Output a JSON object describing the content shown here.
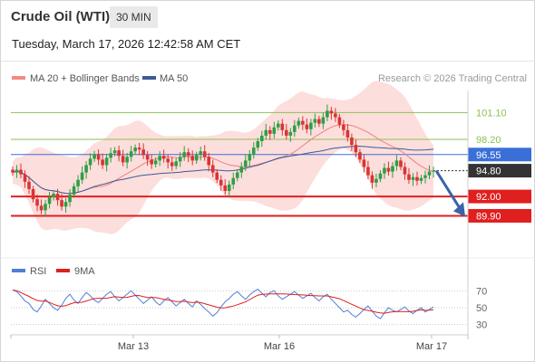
{
  "header": {
    "title": "Crude Oil (WTI)",
    "timeframe": "30 MIN",
    "datetime": "Tuesday, March 17, 2026 12:42:58 AM CET"
  },
  "legend": {
    "items": [
      {
        "label": "MA 20 + Bollinger Bands",
        "color": "#f28b82"
      },
      {
        "label": "MA 50",
        "color": "#3b5b95"
      }
    ],
    "copyright": "Research © 2026 Trading Central"
  },
  "colors": {
    "up": "#2f9e44",
    "down": "#d93434",
    "resistance": "#8cc152",
    "pivot_blue": "#3a6fd8",
    "support_red": "#e01f1f",
    "current": "#333333",
    "bollinger": "#fbd3d0",
    "ma20": "#f08080",
    "ma50": "#3b5b95",
    "rsi": "#4f7fd6",
    "rsi_ma": "#e01f1f",
    "arrow": "#3b63a8"
  },
  "chart_data": [
    {
      "type": "candlestick",
      "x_labels": [
        "Mar 13",
        "Mar 16",
        "Mar 17"
      ],
      "ylim": [
        87.0,
        103.5
      ],
      "levels": [
        {
          "value": 101.1,
          "label": "101.10",
          "kind": "resistance"
        },
        {
          "value": 98.2,
          "label": "98.20",
          "kind": "resistance"
        },
        {
          "value": 96.55,
          "label": "96.55",
          "kind": "pivot"
        },
        {
          "value": 94.8,
          "label": "94.80",
          "kind": "current"
        },
        {
          "value": 92.0,
          "label": "92.00",
          "kind": "support"
        },
        {
          "value": 89.9,
          "label": "89.90",
          "kind": "support"
        }
      ],
      "close": [
        94.6,
        94.9,
        94.4,
        93.6,
        92.8,
        91.7,
        91.0,
        90.5,
        91.2,
        91.9,
        92.3,
        91.6,
        90.9,
        91.4,
        92.2,
        93.1,
        93.8,
        94.6,
        95.4,
        96.1,
        96.6,
        96.0,
        95.4,
        96.2,
        96.7,
        97.0,
        96.4,
        95.7,
        96.3,
        96.9,
        97.3,
        97.1,
        96.5,
        96.0,
        95.5,
        95.9,
        96.4,
        96.1,
        95.7,
        95.3,
        95.8,
        96.3,
        96.8,
        96.4,
        95.9,
        96.5,
        96.9,
        96.3,
        95.4,
        94.6,
        93.8,
        93.2,
        92.6,
        93.3,
        94.0,
        94.6,
        95.2,
        95.9,
        96.6,
        97.3,
        98.0,
        98.6,
        99.2,
        98.8,
        99.5,
        99.9,
        99.2,
        98.6,
        99.0,
        99.7,
        100.2,
        99.8,
        99.3,
        100.0,
        100.4,
        99.9,
        100.6,
        101.3,
        101.0,
        100.6,
        99.8,
        99.2,
        98.4,
        97.6,
        96.8,
        96.0,
        95.2,
        94.3,
        93.5,
        93.9,
        94.5,
        95.1,
        94.7,
        95.3,
        95.9,
        95.2,
        94.4,
        93.8,
        94.1,
        93.7,
        94.0,
        94.3,
        94.7,
        94.8
      ],
      "rsi": {
        "levels": [
          70,
          50,
          30
        ],
        "ylim": [
          20,
          80
        ],
        "values": [
          71,
          69,
          64,
          58,
          55,
          48,
          45,
          52,
          60,
          55,
          50,
          47,
          53,
          61,
          66,
          59,
          55,
          62,
          68,
          64,
          59,
          56,
          61,
          66,
          69,
          63,
          58,
          62,
          66,
          70,
          65,
          60,
          55,
          59,
          63,
          57,
          53,
          58,
          62,
          57,
          52,
          56,
          60,
          55,
          51,
          58,
          54,
          49,
          45,
          40,
          44,
          51,
          57,
          61,
          66,
          69,
          64,
          60,
          65,
          69,
          72,
          67,
          63,
          68,
          70,
          64,
          60,
          63,
          66,
          69,
          65,
          61,
          64,
          67,
          62,
          58,
          63,
          66,
          60,
          55,
          50,
          45,
          47,
          42,
          39,
          43,
          48,
          52,
          46,
          40,
          37,
          44,
          50,
          47,
          45,
          48,
          51,
          46,
          43,
          47,
          50,
          45,
          48,
          51
        ]
      },
      "rsi_ma_label": "9MA",
      "rsi_label": "RSI"
    }
  ]
}
